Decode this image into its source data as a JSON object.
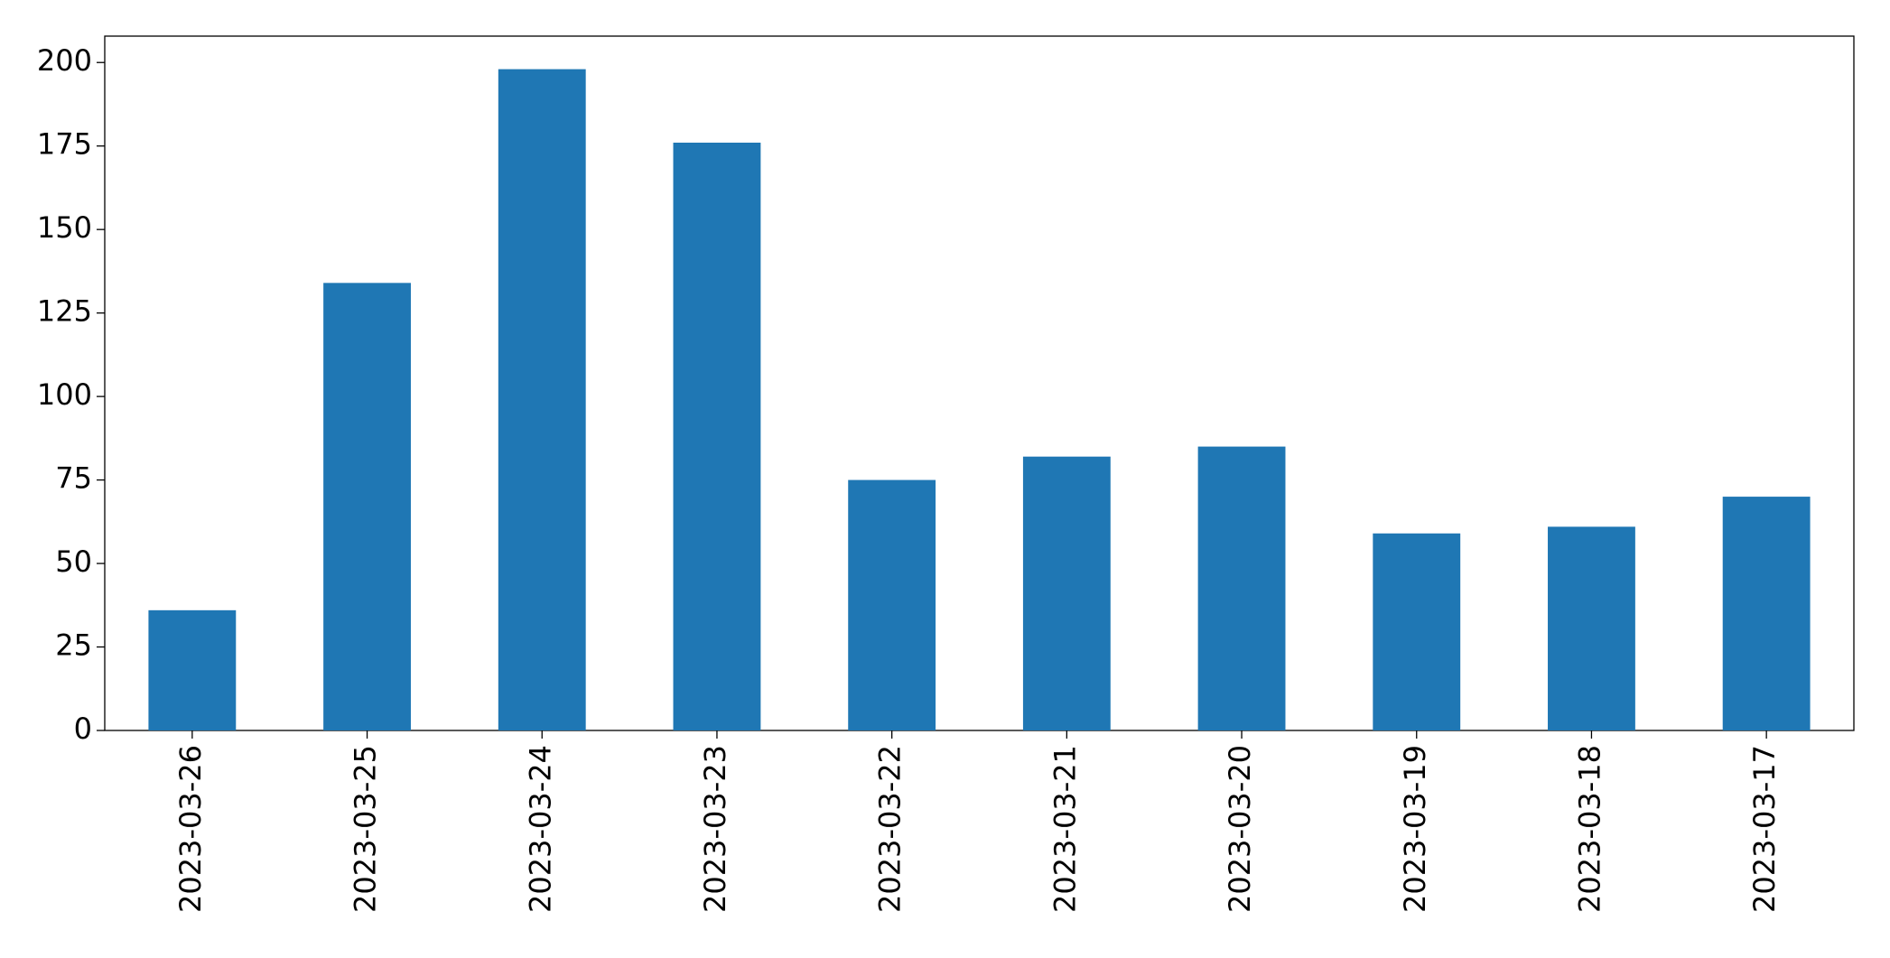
{
  "chart_data": {
    "type": "bar",
    "categories": [
      "2023-03-26",
      "2023-03-25",
      "2023-03-24",
      "2023-03-23",
      "2023-03-22",
      "2023-03-21",
      "2023-03-20",
      "2023-03-19",
      "2023-03-18",
      "2023-03-17"
    ],
    "values": [
      36,
      134,
      198,
      176,
      75,
      82,
      85,
      59,
      61,
      70
    ],
    "color": "#1f77b4",
    "ylim": [
      0,
      207.9
    ],
    "yticks": [
      0,
      25,
      50,
      75,
      100,
      125,
      150,
      175,
      200
    ],
    "grid": false
  }
}
